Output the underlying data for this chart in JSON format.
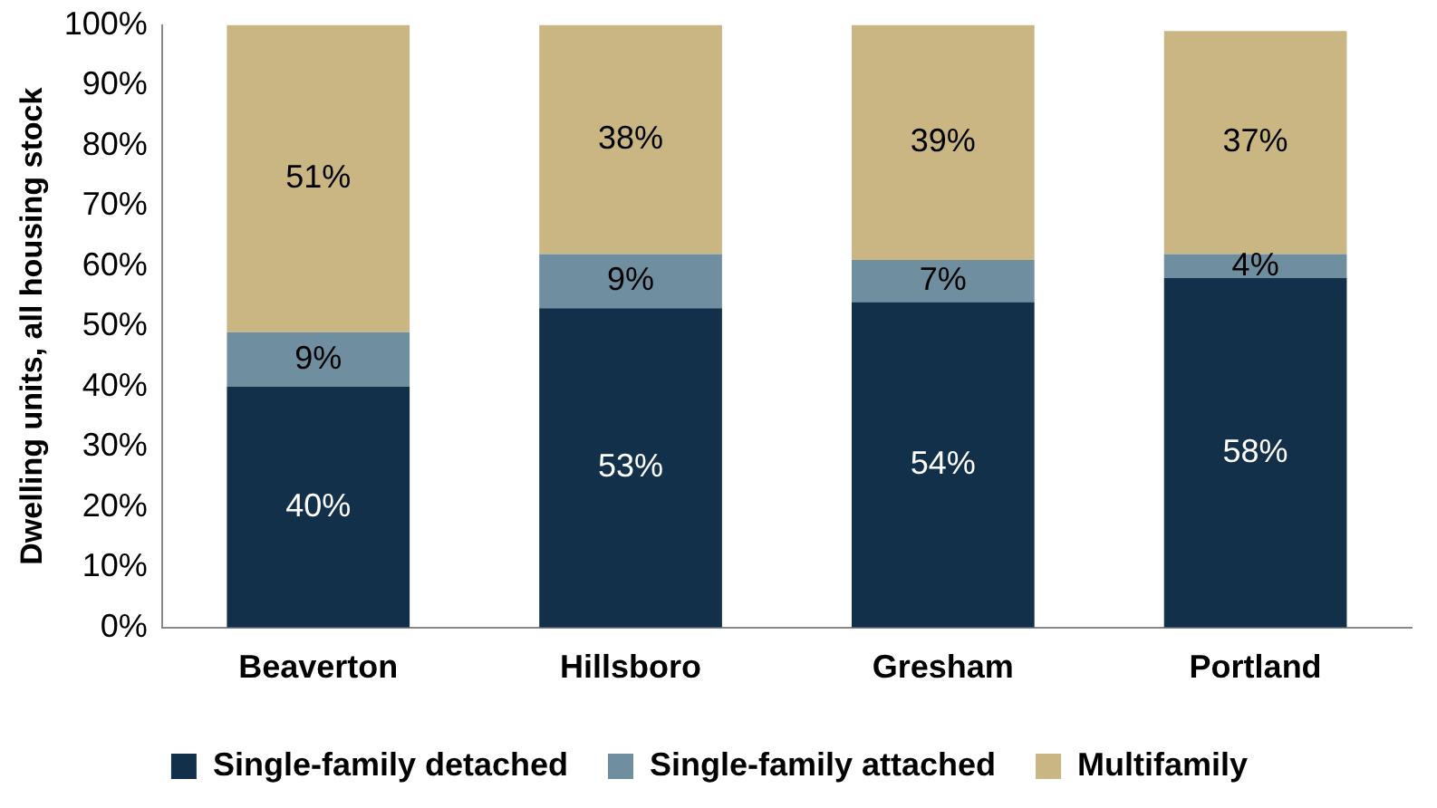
{
  "chart_data": {
    "type": "bar",
    "stacked": true,
    "ylabel": "Dwelling units, all housing stock",
    "categories": [
      "Beaverton",
      "Hillsboro",
      "Gresham",
      "Portland"
    ],
    "series": [
      {
        "name": "Single-family detached",
        "color": "#12304a",
        "values": [
          40,
          53,
          54,
          58
        ],
        "value_labels": [
          "40%",
          "53%",
          "54%",
          "58%"
        ]
      },
      {
        "name": "Single-family attached",
        "color": "#6f8fa1",
        "values": [
          9,
          9,
          7,
          4
        ],
        "value_labels": [
          "9%",
          "9%",
          "7%",
          "4%"
        ]
      },
      {
        "name": "Multifamily",
        "color": "#c9b683",
        "values": [
          51,
          38,
          39,
          37
        ],
        "value_labels": [
          "51%",
          "38%",
          "39%",
          "37%"
        ]
      }
    ],
    "ylim": [
      0,
      100
    ],
    "yticks": [
      {
        "value": 0,
        "label": "0%"
      },
      {
        "value": 10,
        "label": "10%"
      },
      {
        "value": 20,
        "label": "20%"
      },
      {
        "value": 30,
        "label": "30%"
      },
      {
        "value": 40,
        "label": "40%"
      },
      {
        "value": 50,
        "label": "50%"
      },
      {
        "value": 60,
        "label": "60%"
      },
      {
        "value": 70,
        "label": "70%"
      },
      {
        "value": 80,
        "label": "80%"
      },
      {
        "value": 90,
        "label": "90%"
      },
      {
        "value": 100,
        "label": "100%"
      }
    ],
    "grid": false,
    "legend": "bottom"
  }
}
